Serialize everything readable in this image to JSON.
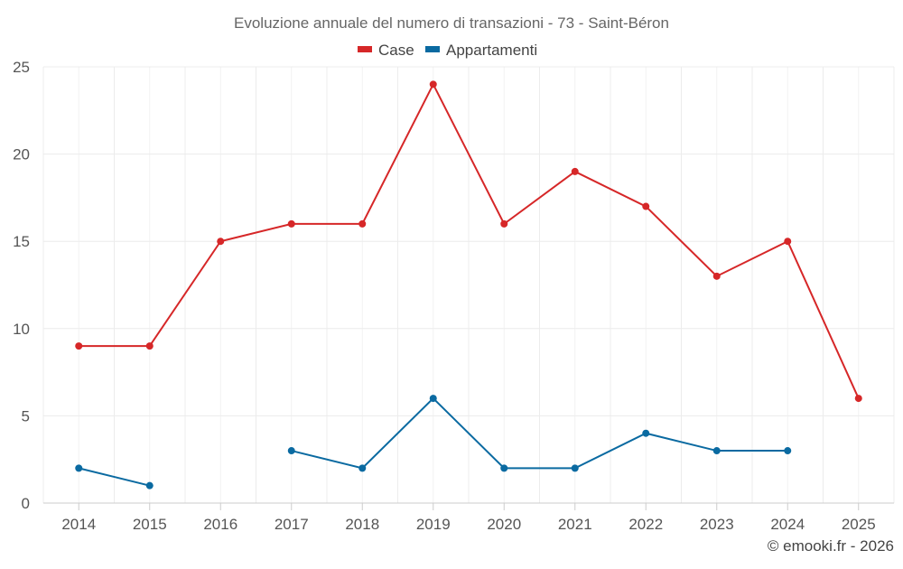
{
  "chart_data": {
    "type": "line",
    "title": "Evoluzione annuale del numero di transazioni - 73 - Saint-Béron",
    "categories": [
      "2014",
      "2015",
      "2016",
      "2017",
      "2018",
      "2019",
      "2020",
      "2021",
      "2022",
      "2023",
      "2024",
      "2025"
    ],
    "series": [
      {
        "name": "Case",
        "color": "#d62728",
        "values": [
          9,
          9,
          15,
          16,
          16,
          24,
          16,
          19,
          17,
          13,
          15,
          6
        ]
      },
      {
        "name": "Appartamenti",
        "color": "#0a6aa1",
        "values": [
          2,
          1,
          null,
          3,
          2,
          6,
          2,
          2,
          4,
          3,
          3,
          null
        ]
      }
    ],
    "ylim": [
      0,
      25
    ],
    "yticks": [
      "0",
      "5",
      "10",
      "15",
      "20",
      "25"
    ],
    "xlabel": "",
    "ylabel": "",
    "grid": true,
    "legend": "top-center",
    "credit": "© emooki.fr - 2026"
  }
}
